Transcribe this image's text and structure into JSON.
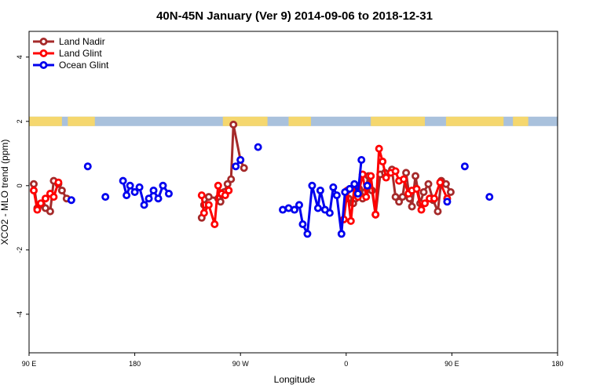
{
  "chart_data": {
    "type": "line",
    "title": "40N-45N January (Ver 9)   2014-09-06 to 2018-12-31",
    "xlabel": "Longitude",
    "ylabel": "XCO2 - MLO trend (ppm)",
    "xlim": [
      90,
      450
    ],
    "ylim": [
      -5.2,
      4.8
    ],
    "x_tick_values": [
      90,
      180,
      270,
      360,
      450,
      540
    ],
    "x_tick_labels": [
      "90 E",
      "180",
      "90 W",
      "0",
      "90 E",
      "180"
    ],
    "y_tick_values": [
      -4,
      -2,
      0,
      2,
      4
    ],
    "y_tick_labels": [
      "-4",
      "-2",
      "0",
      "2",
      "4"
    ],
    "x_axis_range": [
      90,
      540
    ],
    "legend_position": "top-left",
    "land_band": {
      "y": 2,
      "land_color": "#f5d76e",
      "ocean_color": "#a9c1dc",
      "land_segments": [
        [
          90,
          118
        ],
        [
          123,
          146
        ],
        [
          255,
          293
        ],
        [
          311,
          330
        ],
        [
          381,
          427
        ],
        [
          445,
          494
        ],
        [
          502,
          515
        ]
      ]
    },
    "series": [
      {
        "name": "Land Nadir",
        "color": "#a52a2a",
        "segments": [
          [
            [
              94,
              0.05
            ],
            [
              97,
              -0.7
            ],
            [
              101,
              -0.6
            ],
            [
              104,
              -0.7
            ],
            [
              108,
              -0.8
            ],
            [
              111,
              0.15
            ],
            [
              115,
              0.05
            ],
            [
              118,
              -0.15
            ],
            [
              122,
              -0.4
            ]
          ],
          [
            [
              237,
              -1.0
            ],
            [
              239,
              -0.6
            ],
            [
              243,
              -0.35
            ],
            [
              251,
              -0.4
            ],
            [
              253,
              -0.5
            ],
            [
              256,
              -0.2
            ],
            [
              259,
              0.05
            ],
            [
              262,
              0.2
            ],
            [
              264,
              1.9
            ],
            [
              270,
              0.8
            ],
            [
              273,
              0.55
            ]
          ],
          [
            [
              362,
              -0.4
            ],
            [
              366,
              -0.55
            ],
            [
              368,
              -0.4
            ],
            [
              371,
              -0.1
            ],
            [
              374,
              -0.4
            ],
            [
              376,
              -0.2
            ],
            [
              379,
              0.3
            ],
            [
              382,
              -0.15
            ],
            [
              385,
              -0.9
            ],
            [
              389,
              0.35
            ],
            [
              393,
              0.4
            ],
            [
              399,
              0.5
            ],
            [
              402,
              -0.35
            ],
            [
              405,
              -0.5
            ],
            [
              408,
              -0.35
            ],
            [
              411,
              0.4
            ],
            [
              414,
              -0.4
            ],
            [
              416,
              -0.65
            ],
            [
              419,
              0.3
            ],
            [
              423,
              -0.55
            ],
            [
              426,
              -0.2
            ],
            [
              430,
              0.05
            ],
            [
              434,
              -0.45
            ],
            [
              438,
              -0.8
            ],
            [
              441,
              0.15
            ],
            [
              445,
              0.05
            ],
            [
              449,
              -0.2
            ]
          ]
        ]
      },
      {
        "name": "Land Glint",
        "color": "#ff0000",
        "segments": [
          [
            [
              94,
              -0.15
            ],
            [
              97,
              -0.75
            ],
            [
              100,
              -0.55
            ],
            [
              104,
              -0.4
            ],
            [
              108,
              -0.25
            ],
            [
              111,
              -0.35
            ],
            [
              115,
              0.1
            ]
          ],
          [
            [
              237,
              -0.3
            ],
            [
              239,
              -0.85
            ],
            [
              243,
              -0.6
            ],
            [
              248,
              -1.2
            ],
            [
              251,
              0.0
            ],
            [
              254,
              -0.25
            ],
            [
              257,
              -0.3
            ],
            [
              260,
              -0.15
            ]
          ],
          [
            [
              358,
              -1.05
            ],
            [
              361,
              -0.15
            ],
            [
              364,
              -1.1
            ],
            [
              367,
              0.0
            ],
            [
              370,
              -0.35
            ],
            [
              374,
              0.35
            ],
            [
              377,
              -0.35
            ],
            [
              381,
              0.3
            ],
            [
              385,
              -0.9
            ],
            [
              388,
              1.15
            ],
            [
              391,
              0.75
            ],
            [
              394,
              0.25
            ],
            [
              398,
              0.4
            ],
            [
              402,
              0.45
            ],
            [
              405,
              0.15
            ],
            [
              409,
              0.2
            ],
            [
              413,
              -0.25
            ],
            [
              416,
              -0.15
            ],
            [
              420,
              -0.1
            ],
            [
              424,
              -0.75
            ],
            [
              427,
              -0.55
            ],
            [
              431,
              -0.4
            ],
            [
              435,
              -0.4
            ],
            [
              440,
              0.1
            ],
            [
              446,
              -0.4
            ]
          ]
        ]
      },
      {
        "name": "Ocean Glint",
        "color": "#0000ee",
        "segments": [
          [
            [
              126,
              -0.45
            ]
          ],
          [
            [
              140,
              0.6
            ]
          ],
          [
            [
              155,
              -0.35
            ]
          ],
          [
            [
              170,
              0.15
            ],
            [
              173,
              -0.3
            ],
            [
              176,
              0.0
            ],
            [
              180,
              -0.2
            ],
            [
              184,
              -0.05
            ],
            [
              188,
              -0.6
            ],
            [
              192,
              -0.4
            ],
            [
              196,
              -0.15
            ],
            [
              200,
              -0.4
            ],
            [
              204,
              0.0
            ],
            [
              209,
              -0.25
            ]
          ],
          [
            [
              266,
              0.6
            ],
            [
              270,
              0.8
            ]
          ],
          [
            [
              285,
              1.2
            ]
          ],
          [
            [
              306,
              -0.75
            ],
            [
              311,
              -0.7
            ],
            [
              316,
              -0.75
            ],
            [
              320,
              -0.6
            ],
            [
              323,
              -1.2
            ],
            [
              327,
              -1.5
            ],
            [
              331,
              0.0
            ],
            [
              336,
              -0.7
            ],
            [
              338,
              -0.15
            ],
            [
              342,
              -0.75
            ],
            [
              346,
              -0.85
            ],
            [
              349,
              -0.05
            ],
            [
              352,
              -0.3
            ],
            [
              356,
              -1.5
            ],
            [
              359,
              -0.2
            ],
            [
              363,
              -0.1
            ],
            [
              367,
              0.05
            ],
            [
              370,
              -0.25
            ],
            [
              373,
              0.8
            ]
          ],
          [
            [
              378,
              0.0
            ]
          ],
          [
            [
              446,
              -0.5
            ]
          ],
          [
            [
              461,
              0.6
            ]
          ],
          [
            [
              482,
              -0.35
            ]
          ]
        ]
      }
    ]
  }
}
